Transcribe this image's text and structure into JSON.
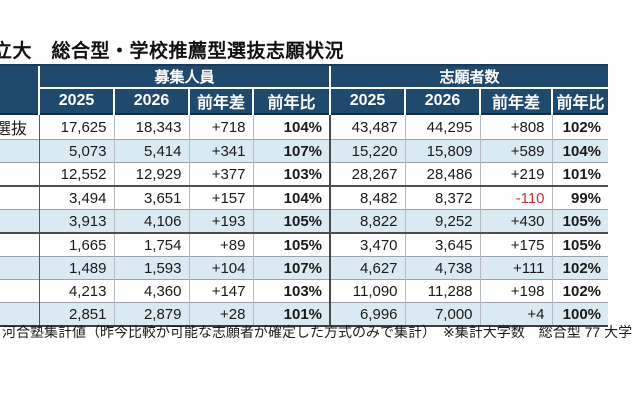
{
  "title": "立大　総合型・学校推薦型選抜志願状況",
  "table": {
    "row_label_header": "",
    "groups": [
      {
        "label": "募集人員",
        "sub": [
          "2025",
          "2026",
          "前年差",
          "前年比"
        ]
      },
      {
        "label": "志願者数",
        "sub": [
          "2025",
          "2026",
          "前年差",
          "前年比"
        ]
      }
    ],
    "rows": [
      {
        "label": "選抜",
        "cells": [
          "17,625",
          "18,343",
          "+718",
          "104%",
          "43,487",
          "44,295",
          "+808",
          "102%"
        ]
      },
      {
        "label": "",
        "cells": [
          "5,073",
          "5,414",
          "+341",
          "107%",
          "15,220",
          "15,809",
          "+589",
          "104%"
        ]
      },
      {
        "label": "",
        "cells": [
          "12,552",
          "12,929",
          "+377",
          "103%",
          "28,267",
          "28,486",
          "+219",
          "101%"
        ]
      },
      {
        "label": "",
        "cells": [
          "3,494",
          "3,651",
          "+157",
          "104%",
          "8,482",
          "8,372",
          "-110",
          "99%"
        ]
      },
      {
        "label": "",
        "cells": [
          "3,913",
          "4,106",
          "+193",
          "105%",
          "8,822",
          "9,252",
          "+430",
          "105%"
        ]
      },
      {
        "label": "",
        "cells": [
          "1,665",
          "1,754",
          "+89",
          "105%",
          "3,470",
          "3,645",
          "+175",
          "105%"
        ]
      },
      {
        "label": "",
        "cells": [
          "1,489",
          "1,593",
          "+104",
          "107%",
          "4,627",
          "4,738",
          "+111",
          "102%"
        ]
      },
      {
        "label": "",
        "cells": [
          "4,213",
          "4,360",
          "+147",
          "103%",
          "11,090",
          "11,288",
          "+198",
          "102%"
        ]
      },
      {
        "label": "",
        "cells": [
          "2,851",
          "2,879",
          "+28",
          "101%",
          "6,996",
          "7,000",
          "+4",
          "100%"
        ]
      }
    ]
  },
  "footnote": "河合塾集計値（昨今比較が可能な志願者が確定した方式のみで集計）　※集計大学数　総合型 77 大学",
  "colors": {
    "header_bg": "#1F4A6E",
    "row_stripe": "#D9EAF3",
    "negative_value": "#C33333"
  }
}
